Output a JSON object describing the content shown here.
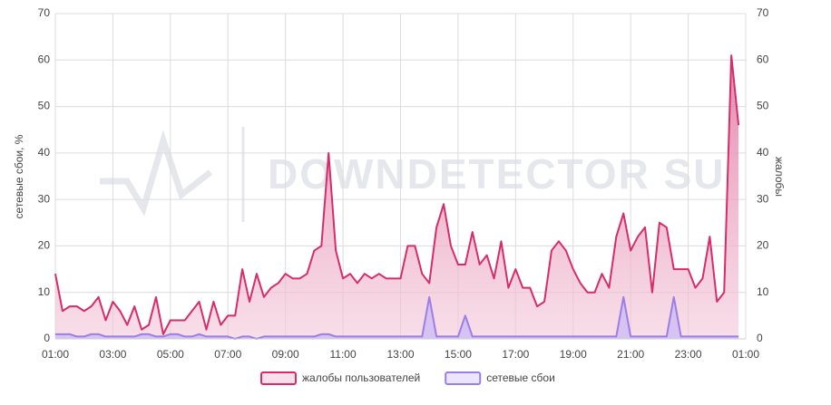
{
  "chart_data": {
    "type": "line",
    "watermark": "DOWNDETECTOR SU",
    "y_label": "сетевые сбои, %",
    "y2_label": "жалобы",
    "categories": [
      "01:00",
      null,
      null,
      null,
      null,
      null,
      null,
      null,
      "03:00",
      null,
      null,
      null,
      null,
      null,
      null,
      null,
      "05:00",
      null,
      null,
      null,
      null,
      null,
      null,
      null,
      "07:00",
      null,
      null,
      null,
      null,
      null,
      null,
      null,
      "09:00",
      null,
      null,
      null,
      null,
      null,
      null,
      null,
      "11:00",
      null,
      null,
      null,
      null,
      null,
      null,
      null,
      "13:00",
      null,
      null,
      null,
      null,
      null,
      null,
      null,
      "15:00",
      null,
      null,
      null,
      null,
      null,
      null,
      null,
      "17:00",
      null,
      null,
      null,
      null,
      null,
      null,
      null,
      "19:00",
      null,
      null,
      null,
      null,
      null,
      null,
      null,
      "21:00",
      null,
      null,
      null,
      null,
      null,
      null,
      null,
      "23:00",
      null,
      null,
      null,
      null,
      null,
      null,
      null,
      "01:00"
    ],
    "series": [
      {
        "name": "жалобы пользователей",
        "color": "#d62d6a",
        "fill": "#eca2c0",
        "axis": "y2",
        "values": [
          14,
          6,
          7,
          7,
          6,
          7,
          9,
          4,
          8,
          6,
          3,
          7,
          2,
          3,
          9,
          1,
          4,
          4,
          4,
          6,
          8,
          2,
          8,
          3,
          5,
          5,
          15,
          8,
          14,
          9,
          11,
          12,
          14,
          13,
          13,
          14,
          19,
          20,
          40,
          19,
          13,
          14,
          12,
          14,
          13,
          14,
          13,
          13,
          13,
          20,
          20,
          14,
          12,
          24,
          29,
          20,
          16,
          16,
          23,
          16,
          18,
          13,
          21,
          11,
          15,
          11,
          11,
          7,
          8,
          19,
          21,
          19,
          15,
          12,
          10,
          10,
          14,
          11,
          22,
          27,
          19,
          22,
          24,
          10,
          25,
          24,
          15,
          15,
          15,
          11,
          13,
          22,
          8,
          10,
          61,
          46,
          null
        ]
      },
      {
        "name": "сетевые сбои",
        "color": "#9b7ee6",
        "fill": "#c9b8f5",
        "axis": "y",
        "values": [
          1,
          1,
          1,
          0.5,
          0.5,
          1,
          1,
          0.5,
          0.5,
          0.5,
          0.5,
          0.5,
          1,
          1,
          0.5,
          0.5,
          1,
          1,
          0.5,
          0.5,
          1,
          0.5,
          0.5,
          0.5,
          0.5,
          0,
          0.5,
          0.5,
          0,
          0.5,
          0.5,
          0.5,
          0.5,
          0.5,
          0.5,
          0.5,
          0.5,
          1,
          1,
          0.5,
          0.5,
          0.5,
          0.5,
          0.5,
          0.5,
          0.5,
          0.5,
          0.5,
          0.5,
          0.5,
          0.5,
          0.5,
          9,
          0.5,
          0.5,
          0.5,
          0.5,
          5,
          0.5,
          0.5,
          0.5,
          0.5,
          0.5,
          0.5,
          0.5,
          0.5,
          0.5,
          0.5,
          0.5,
          0.5,
          0.5,
          0.5,
          0.5,
          0.5,
          0.5,
          0.5,
          0.5,
          0.5,
          0.5,
          9,
          0.5,
          0.5,
          0.5,
          0.5,
          0.5,
          0.5,
          9,
          0.5,
          0.5,
          0.5,
          0.5,
          0.5,
          0.5,
          0.5,
          0.5,
          0.5,
          null
        ]
      }
    ],
    "ylim": [
      0,
      70
    ],
    "yticks": [
      0,
      10,
      20,
      30,
      40,
      50,
      60,
      70
    ],
    "y2lim": [
      0,
      70
    ],
    "y2ticks": [
      0,
      10,
      20,
      30,
      40,
      50,
      60,
      70
    ],
    "grid": true,
    "legend": "bottom"
  }
}
